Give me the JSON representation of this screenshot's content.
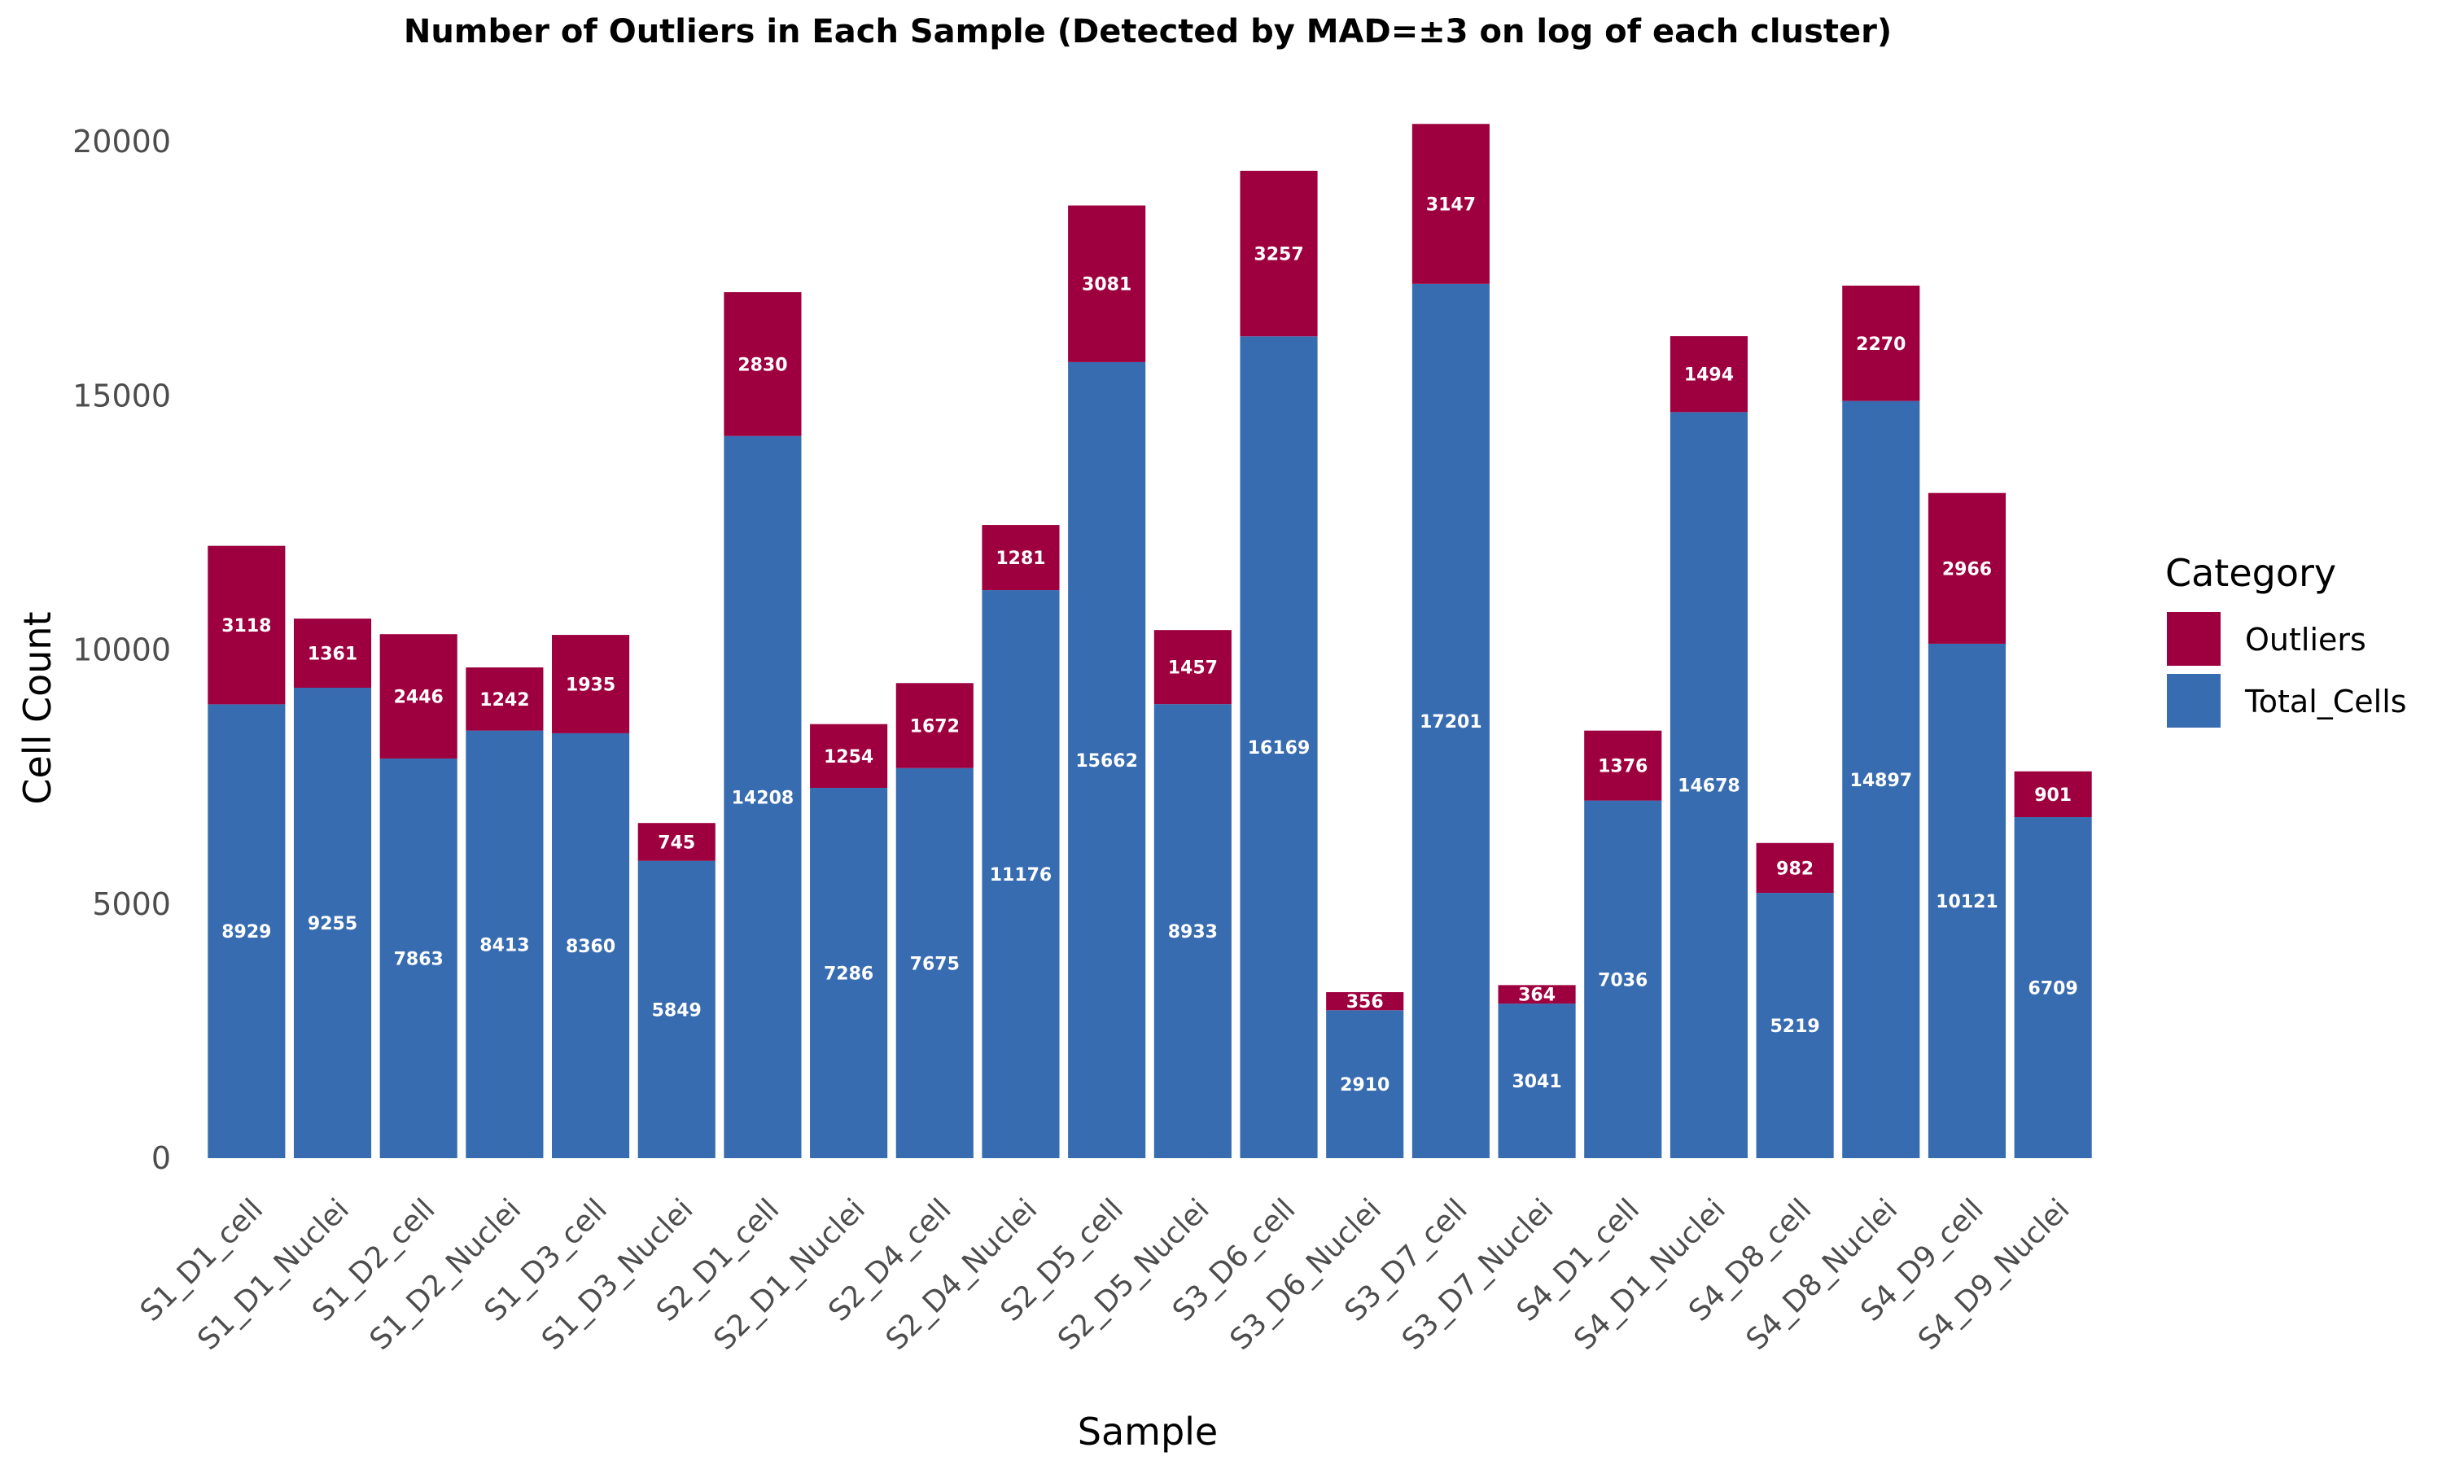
{
  "chart_data": {
    "type": "bar",
    "stacked": true,
    "title": "Number of Outliers in Each Sample (Detected by MAD=±3 on log of each cluster)",
    "xlabel": "Sample",
    "ylabel": "Cell Count",
    "ylim": [
      0,
      21000
    ],
    "yticks": [
      0,
      5000,
      10000,
      15000,
      20000
    ],
    "grid": false,
    "legend": {
      "title": "Category",
      "position": "right"
    },
    "categories": [
      "S1_D1_cell",
      "S1_D1_Nuclei",
      "S1_D2_cell",
      "S1_D2_Nuclei",
      "S1_D3_cell",
      "S1_D3_Nuclei",
      "S2_D1_cell",
      "S2_D1_Nuclei",
      "S2_D4_cell",
      "S2_D4_Nuclei",
      "S2_D5_cell",
      "S2_D5_Nuclei",
      "S3_D6_cell",
      "S3_D6_Nuclei",
      "S3_D7_cell",
      "S3_D7_Nuclei",
      "S4_D1_cell",
      "S4_D1_Nuclei",
      "S4_D8_cell",
      "S4_D8_Nuclei",
      "S4_D9_cell",
      "S4_D9_Nuclei"
    ],
    "series": [
      {
        "name": "Total_Cells",
        "color": "#386CB0",
        "values": [
          8929,
          9255,
          7863,
          8413,
          8360,
          5849,
          14208,
          7286,
          7675,
          11176,
          15662,
          8933,
          16169,
          2910,
          17201,
          3041,
          7036,
          14678,
          5219,
          14897,
          10121,
          6709
        ]
      },
      {
        "name": "Outliers",
        "color": "#9E003F",
        "values": [
          3118,
          1361,
          2446,
          1242,
          1935,
          745,
          2830,
          1254,
          1672,
          1281,
          3081,
          1457,
          3257,
          356,
          3147,
          364,
          1376,
          1494,
          982,
          2270,
          2966,
          901
        ]
      }
    ],
    "legend_order": [
      "Outliers",
      "Total_Cells"
    ]
  }
}
